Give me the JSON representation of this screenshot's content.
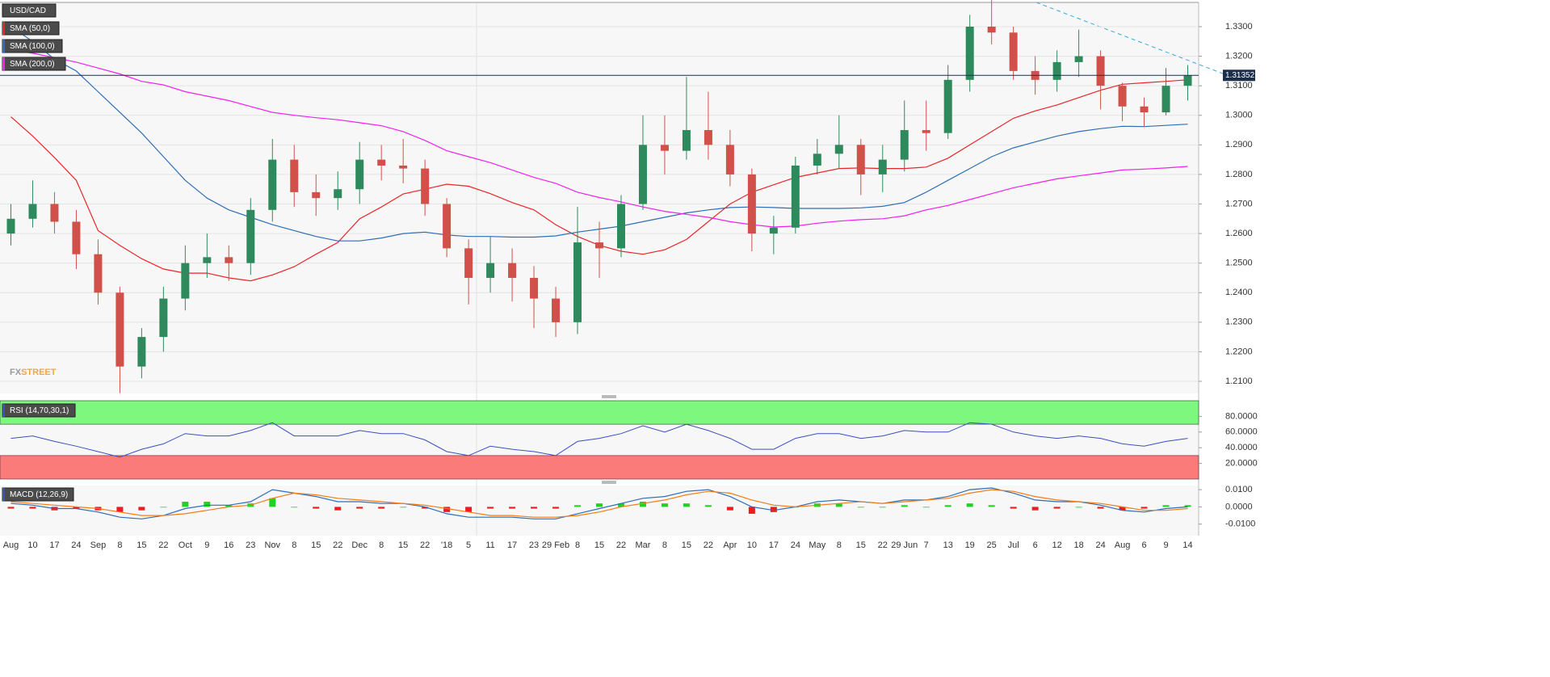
{
  "chart_data": [
    {
      "type": "candlestick",
      "title": "USD/CAD",
      "categories": [
        "Aug",
        "10",
        "17",
        "24",
        "Sep",
        "8",
        "15",
        "22",
        "Oct",
        "9",
        "16",
        "23",
        "Nov",
        "8",
        "15",
        "22",
        "Dec",
        "8",
        "15",
        "22",
        "'18",
        "5",
        "11",
        "17",
        "23",
        "29 Feb",
        "8",
        "15",
        "22",
        "Mar",
        "8",
        "15",
        "22",
        "Apr",
        "10",
        "17",
        "24",
        "May",
        "8",
        "15",
        "22",
        "29 Jun",
        "7",
        "13",
        "19",
        "25",
        "Jul",
        "6",
        "12",
        "18",
        "24",
        "Aug",
        "6",
        "9",
        "14"
      ],
      "open": [
        1.26,
        1.265,
        1.27,
        1.264,
        1.253,
        1.24,
        1.215,
        1.225,
        1.238,
        1.25,
        1.252,
        1.25,
        1.268,
        1.285,
        1.274,
        1.272,
        1.275,
        1.285,
        1.283,
        1.282,
        1.27,
        1.255,
        1.245,
        1.25,
        1.245,
        1.238,
        1.23,
        1.257,
        1.255,
        1.27,
        1.29,
        1.288,
        1.295,
        1.29,
        1.28,
        1.26,
        1.262,
        1.283,
        1.287,
        1.29,
        1.28,
        1.285,
        1.295,
        1.294,
        1.312,
        1.33,
        1.328,
        1.315,
        1.312,
        1.318,
        1.32,
        1.31,
        1.303,
        1.301,
        1.31
      ],
      "high": [
        1.27,
        1.278,
        1.274,
        1.268,
        1.258,
        1.242,
        1.228,
        1.242,
        1.256,
        1.26,
        1.256,
        1.272,
        1.292,
        1.29,
        1.28,
        1.281,
        1.291,
        1.29,
        1.292,
        1.285,
        1.272,
        1.258,
        1.259,
        1.255,
        1.249,
        1.242,
        1.269,
        1.264,
        1.273,
        1.3,
        1.3,
        1.313,
        1.308,
        1.295,
        1.282,
        1.266,
        1.286,
        1.292,
        1.3,
        1.292,
        1.29,
        1.305,
        1.305,
        1.317,
        1.334,
        1.339,
        1.33,
        1.32,
        1.322,
        1.329,
        1.322,
        1.311,
        1.306,
        1.316,
        1.317
      ],
      "low": [
        1.256,
        1.262,
        1.26,
        1.248,
        1.236,
        1.206,
        1.211,
        1.22,
        1.234,
        1.245,
        1.244,
        1.246,
        1.264,
        1.269,
        1.266,
        1.268,
        1.27,
        1.278,
        1.277,
        1.266,
        1.252,
        1.236,
        1.24,
        1.237,
        1.228,
        1.225,
        1.226,
        1.245,
        1.252,
        1.268,
        1.28,
        1.285,
        1.285,
        1.276,
        1.254,
        1.253,
        1.26,
        1.28,
        1.282,
        1.273,
        1.274,
        1.281,
        1.288,
        1.292,
        1.308,
        1.324,
        1.312,
        1.307,
        1.308,
        1.313,
        1.302,
        1.298,
        1.296,
        1.3,
        1.305
      ],
      "close": [
        1.265,
        1.27,
        1.264,
        1.253,
        1.24,
        1.215,
        1.225,
        1.238,
        1.25,
        1.252,
        1.25,
        1.268,
        1.285,
        1.274,
        1.272,
        1.275,
        1.285,
        1.283,
        1.282,
        1.27,
        1.255,
        1.245,
        1.25,
        1.245,
        1.238,
        1.23,
        1.257,
        1.255,
        1.27,
        1.29,
        1.288,
        1.295,
        1.29,
        1.28,
        1.26,
        1.262,
        1.283,
        1.287,
        1.29,
        1.28,
        1.285,
        1.295,
        1.294,
        1.312,
        1.33,
        1.328,
        1.315,
        1.312,
        1.318,
        1.32,
        1.31,
        1.303,
        1.301,
        1.31,
        1.3135
      ],
      "colors": {
        "up": "#2e8a5c",
        "down": "#d2504a"
      },
      "series": [
        {
          "name": "SMA (50,0)",
          "color": "#e8262a",
          "values": [
            1.2995,
            1.293,
            1.2857,
            1.278,
            1.261,
            1.256,
            1.2515,
            1.248,
            1.2466,
            1.2466,
            1.245,
            1.244,
            1.246,
            1.2488,
            1.253,
            1.257,
            1.265,
            1.269,
            1.2734,
            1.275,
            1.2767,
            1.276,
            1.2735,
            1.2705,
            1.268,
            1.263,
            1.259,
            1.256,
            1.254,
            1.253,
            1.2545,
            1.258,
            1.264,
            1.27,
            1.274,
            1.2765,
            1.279,
            1.2805,
            1.282,
            1.2822,
            1.282,
            1.282,
            1.2825,
            1.2855,
            1.29,
            1.2945,
            1.299,
            1.3015,
            1.3035,
            1.306,
            1.3085,
            1.3105,
            1.311,
            1.3115,
            1.312
          ]
        },
        {
          "name": "SMA (100,0)",
          "color": "#2f6eb5",
          "values": [
            1.33,
            1.325,
            1.319,
            1.315,
            1.308,
            1.301,
            1.294,
            1.286,
            1.278,
            1.272,
            1.268,
            1.2655,
            1.263,
            1.261,
            1.259,
            1.2575,
            1.2575,
            1.2585,
            1.26,
            1.2605,
            1.2595,
            1.259,
            1.259,
            1.2588,
            1.2588,
            1.2592,
            1.2605,
            1.2615,
            1.2625,
            1.264,
            1.2655,
            1.267,
            1.268,
            1.2688,
            1.269,
            1.2688,
            1.2685,
            1.2685,
            1.2685,
            1.2687,
            1.2692,
            1.2705,
            1.274,
            1.278,
            1.282,
            1.286,
            1.289,
            1.291,
            1.293,
            1.2945,
            1.2955,
            1.2963,
            1.2962,
            1.2966,
            1.297
          ]
        },
        {
          "name": "SMA (200,0)",
          "color": "#ee22ee",
          "values": [
            1.3222,
            1.321,
            1.3195,
            1.318,
            1.316,
            1.314,
            1.3115,
            1.3103,
            1.308,
            1.3065,
            1.305,
            1.303,
            1.301,
            1.3,
            1.2992,
            1.2985,
            1.2975,
            1.2965,
            1.2945,
            1.2915,
            1.288,
            1.286,
            1.284,
            1.2815,
            1.279,
            1.277,
            1.274,
            1.2722,
            1.2707,
            1.269,
            1.2675,
            1.2665,
            1.2655,
            1.264,
            1.263,
            1.2622,
            1.2625,
            1.2635,
            1.2642,
            1.2647,
            1.265,
            1.266,
            1.268,
            1.2695,
            1.2715,
            1.2735,
            1.2755,
            1.277,
            1.2785,
            1.2795,
            1.2805,
            1.2815,
            1.2818,
            1.2822,
            1.2827
          ]
        }
      ],
      "last_value": {
        "value": 1.31352,
        "label": "1.31352"
      },
      "ylim": [
        1.2059,
        1.3382
      ],
      "yticks": [
        {
          "value": 1.21,
          "label": "1.2100"
        },
        {
          "value": 1.22,
          "label": "1.2200"
        },
        {
          "value": 1.23,
          "label": "1.2300"
        },
        {
          "value": 1.24,
          "label": "1.2400"
        },
        {
          "value": 1.25,
          "label": "1.2500"
        },
        {
          "value": 1.26,
          "label": "1.2600"
        },
        {
          "value": 1.27,
          "label": "1.2700"
        },
        {
          "value": 1.28,
          "label": "1.2800"
        },
        {
          "value": 1.29,
          "label": "1.2900"
        },
        {
          "value": 1.3,
          "label": "1.3000"
        },
        {
          "value": 1.31,
          "label": "1.3100"
        },
        {
          "value": 1.32,
          "label": "1.3200"
        },
        {
          "value": 1.33,
          "label": "1.3300"
        }
      ],
      "grid": true,
      "logo": [
        "FX",
        "STREET"
      ]
    },
    {
      "type": "line",
      "title": "RSI (14,70,30,1)",
      "color": "#3a4fc0",
      "values": [
        52,
        55,
        48,
        42,
        35,
        28,
        38,
        45,
        58,
        55,
        55,
        62,
        72,
        55,
        55,
        55,
        62,
        58,
        58,
        50,
        35,
        30,
        42,
        38,
        35,
        30,
        48,
        52,
        58,
        68,
        60,
        70,
        62,
        52,
        38,
        38,
        52,
        58,
        58,
        52,
        55,
        62,
        60,
        60,
        72,
        70,
        60,
        55,
        52,
        55,
        52,
        45,
        42,
        48,
        52
      ],
      "bands": [
        {
          "from": 70,
          "to": 100,
          "color": "#7ef77e"
        },
        {
          "from": 0,
          "to": 30,
          "color": "#fb7b7b"
        }
      ],
      "ylim": [
        0,
        100
      ],
      "yticks": [
        {
          "value": 20,
          "label": "20.0000"
        },
        {
          "value": 40,
          "label": "40.0000"
        },
        {
          "value": 60,
          "label": "60.0000"
        },
        {
          "value": 80,
          "label": "80.0000"
        }
      ]
    },
    {
      "type": "combo",
      "title": "MACD (12,26,9)",
      "series": [
        {
          "type": "bar",
          "colors": {
            "positive": "#1fd41f",
            "negative": "#e81d1d"
          },
          "values": [
            -0.001,
            -0.001,
            -0.002,
            -0.001,
            -0.002,
            -0.003,
            -0.002,
            0,
            0.003,
            0.003,
            0.001,
            0.002,
            0.005,
            0,
            -0.001,
            -0.002,
            -0.001,
            -0.001,
            0,
            -0.001,
            -0.003,
            -0.003,
            -0.001,
            -0.001,
            -0.001,
            -0.001,
            0.001,
            0.002,
            0.002,
            0.003,
            0.002,
            0.002,
            0.001,
            -0.002,
            -0.004,
            -0.003,
            0,
            0.002,
            0.002,
            0,
            0,
            0.001,
            0,
            0.001,
            0.002,
            0.001,
            -0.001,
            -0.002,
            -0.001,
            0,
            -0.001,
            -0.002,
            -0.001,
            0.001,
            0.001
          ]
        },
        {
          "type": "line",
          "color": "#2f6eb5",
          "values": [
            0.002,
            0.001,
            -0.001,
            -0.001,
            -0.003,
            -0.006,
            -0.007,
            -0.005,
            -0.001,
            0.001,
            0.001,
            0.003,
            0.01,
            0.008,
            0.006,
            0.003,
            0.003,
            0.002,
            0.002,
            0,
            -0.004,
            -0.006,
            -0.006,
            -0.006,
            -0.007,
            -0.007,
            -0.004,
            -0.001,
            0.002,
            0.005,
            0.006,
            0.009,
            0.01,
            0.006,
            0,
            -0.002,
            0,
            0.003,
            0.004,
            0.003,
            0.002,
            0.004,
            0.004,
            0.006,
            0.01,
            0.011,
            0.008,
            0.004,
            0.003,
            0.003,
            0.001,
            -0.002,
            -0.003,
            -0.001,
            0
          ]
        },
        {
          "type": "line",
          "color": "#f07d1a",
          "values": [
            0.003,
            0.002,
            0.001,
            0,
            -0.001,
            -0.003,
            -0.005,
            -0.005,
            -0.004,
            -0.002,
            0,
            0.001,
            0.005,
            0.008,
            0.007,
            0.005,
            0.004,
            0.003,
            0.002,
            0.001,
            -0.001,
            -0.003,
            -0.005,
            -0.005,
            -0.006,
            -0.006,
            -0.005,
            -0.003,
            0,
            0.002,
            0.004,
            0.007,
            0.009,
            0.008,
            0.004,
            0.001,
            0,
            0.001,
            0.002,
            0.003,
            0.002,
            0.003,
            0.004,
            0.005,
            0.008,
            0.01,
            0.009,
            0.006,
            0.004,
            0.003,
            0.002,
            0,
            -0.002,
            -0.002,
            -0.001
          ]
        }
      ],
      "ylim": [
        -0.0167,
        0.0124
      ],
      "yticks": [
        {
          "value": -0.01,
          "label": "-0.0100"
        },
        {
          "value": 0,
          "label": "0.0000"
        },
        {
          "value": 0.01,
          "label": "0.0100"
        }
      ]
    }
  ]
}
